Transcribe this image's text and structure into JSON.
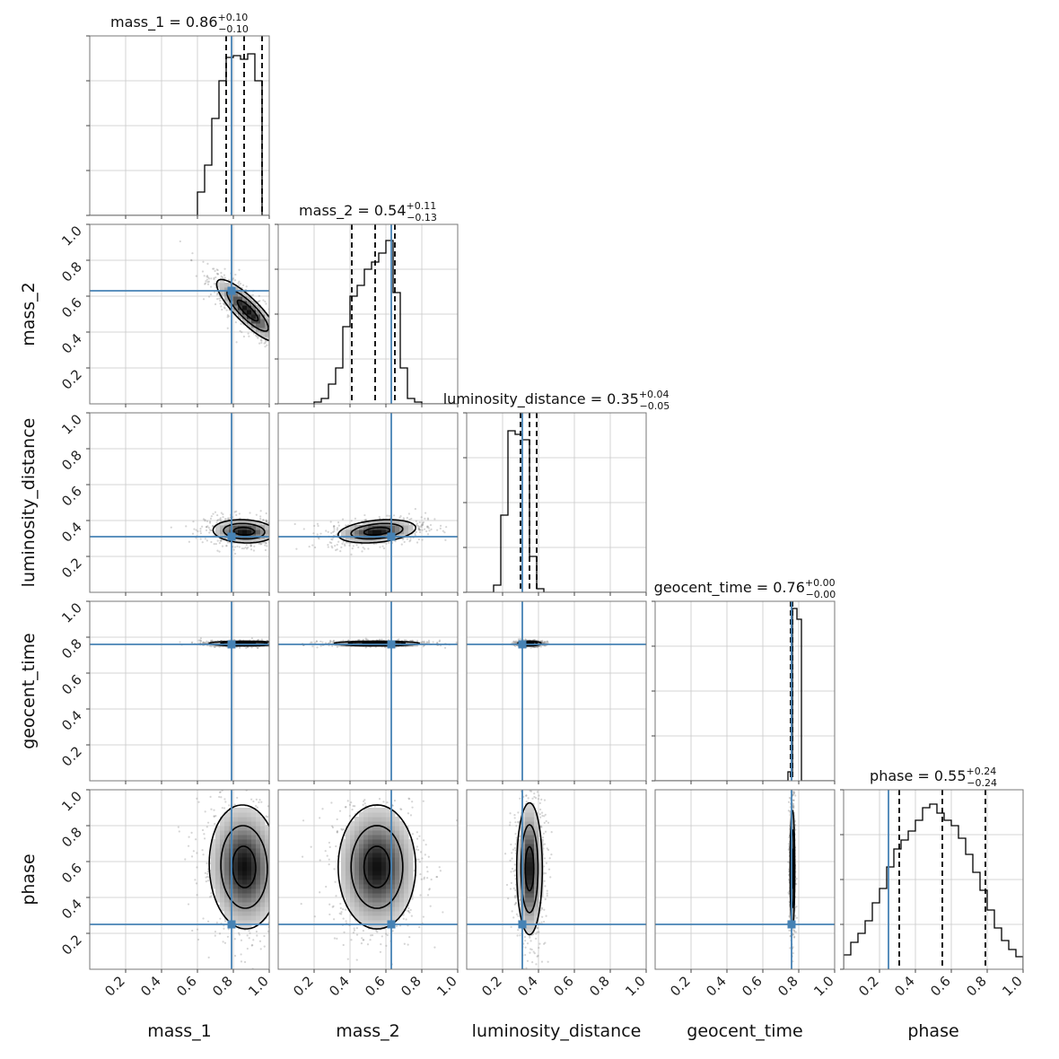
{
  "chart_data": {
    "type": "corner",
    "parameters": [
      "mass_1",
      "mass_2",
      "luminosity_distance",
      "geocent_time",
      "phase"
    ],
    "axis_ticks": [
      0.2,
      0.4,
      0.6,
      0.8,
      1.0
    ],
    "axis_tick_labels": [
      "0.2",
      "0.4",
      "0.6",
      "0.8",
      "1.0"
    ],
    "axis_range": [
      0,
      1
    ],
    "grid": true,
    "truth_color": "#4682b4",
    "truths": {
      "mass_1": 0.79,
      "mass_2": 0.63,
      "luminosity_distance": 0.31,
      "geocent_time": 0.76,
      "phase": 0.25
    },
    "titles": [
      {
        "param": "mass_1",
        "label": "mass_1 = 0.86",
        "plus": "+0.10",
        "minus": "−0.10"
      },
      {
        "param": "mass_2",
        "label": "mass_2 = 0.54",
        "plus": "+0.11",
        "minus": "−0.13"
      },
      {
        "param": "luminosity_distance",
        "label": "luminosity_distance = 0.35",
        "plus": "+0.04",
        "minus": "−0.05"
      },
      {
        "param": "geocent_time",
        "label": "geocent_time = 0.76",
        "plus": "+0.00",
        "minus": "−0.00"
      },
      {
        "param": "phase",
        "label": "phase = 0.55",
        "plus": "+0.24",
        "minus": "−0.24"
      }
    ],
    "quantiles": {
      "mass_1": [
        0.76,
        0.86,
        0.96
      ],
      "mass_2": [
        0.41,
        0.54,
        0.65
      ],
      "luminosity_distance": [
        0.3,
        0.35,
        0.39
      ],
      "geocent_time": [
        0.755,
        0.76,
        0.765
      ],
      "phase": [
        0.31,
        0.55,
        0.79
      ]
    },
    "histograms": {
      "mass_1": {
        "start": 0.6,
        "bin": 0.04,
        "counts": [
          0.13,
          0.28,
          0.54,
          0.75,
          0.88,
          0.89,
          0.87,
          0.9,
          0.75
        ]
      },
      "mass_2": {
        "start": 0.2,
        "bin": 0.04,
        "counts": [
          0.01,
          0.03,
          0.11,
          0.2,
          0.43,
          0.6,
          0.66,
          0.75,
          0.79,
          0.84,
          0.91,
          0.62,
          0.2,
          0.03,
          0.01
        ]
      },
      "luminosity_distance": {
        "start": 0.15,
        "bin": 0.04,
        "counts": [
          0.04,
          0.43,
          0.9,
          0.88,
          0.85,
          0.2,
          0.02
        ]
      },
      "geocent_time": {
        "start": 0.74,
        "bin": 0.025,
        "counts": [
          0.05,
          0.96,
          0.9
        ]
      },
      "phase": {
        "start": 0.0,
        "bin": 0.04,
        "counts": [
          0.08,
          0.15,
          0.2,
          0.27,
          0.37,
          0.45,
          0.57,
          0.67,
          0.72,
          0.77,
          0.83,
          0.9,
          0.92,
          0.87,
          0.83,
          0.8,
          0.73,
          0.64,
          0.54,
          0.44,
          0.33,
          0.23,
          0.16,
          0.11,
          0.07
        ]
      }
    },
    "blobs": {
      "mass_2|mass_1": {
        "cx": 0.88,
        "cy": 0.52,
        "sx": 0.08,
        "sy": 0.08,
        "rho": -0.85
      },
      "luminosity_distance|mass_1": {
        "cx": 0.86,
        "cy": 0.34,
        "sx": 0.08,
        "sy": 0.03,
        "rho": -0.1
      },
      "luminosity_distance|mass_2": {
        "cx": 0.55,
        "cy": 0.34,
        "sx": 0.1,
        "sy": 0.03,
        "rho": 0.3
      },
      "geocent_time|mass_1": {
        "cx": 0.86,
        "cy": 0.765,
        "sx": 0.09,
        "sy": 0.006,
        "rho": 0.0
      },
      "geocent_time|mass_2": {
        "cx": 0.55,
        "cy": 0.765,
        "sx": 0.11,
        "sy": 0.006,
        "rho": 0.0
      },
      "geocent_time|luminosity_distance": {
        "cx": 0.35,
        "cy": 0.765,
        "sx": 0.03,
        "sy": 0.006,
        "rho": 0.0
      },
      "phase|mass_1": {
        "cx": 0.86,
        "cy": 0.57,
        "sx": 0.09,
        "sy": 0.16,
        "rho": -0.05
      },
      "phase|mass_2": {
        "cx": 0.55,
        "cy": 0.57,
        "sx": 0.1,
        "sy": 0.16,
        "rho": 0.0
      },
      "phase|luminosity_distance": {
        "cx": 0.35,
        "cy": 0.56,
        "sx": 0.033,
        "sy": 0.17,
        "rho": 0.0
      },
      "phase|geocent_time": {
        "cx": 0.765,
        "cy": 0.56,
        "sx": 0.006,
        "sy": 0.15,
        "rho": 0.0
      }
    }
  }
}
